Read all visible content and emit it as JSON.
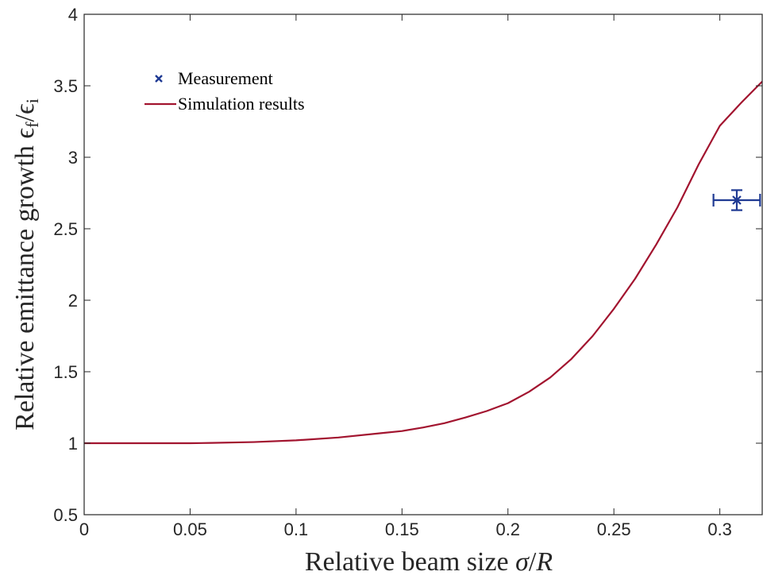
{
  "chart_data": {
    "type": "line",
    "xlabel": "Relative beam size σ/R",
    "xlabel_parts": {
      "text": "Relative beam size ",
      "sym1": "σ",
      "slash": "/",
      "sym2": "R"
    },
    "ylabel": "Relative emittance growth ϵf/ϵi",
    "ylabel_parts": {
      "text": "Relative emittance growth ",
      "eps1": "ϵ",
      "sub1": "f",
      "slash": "/",
      "eps2": "ϵ",
      "sub2": "i"
    },
    "xlim": [
      0,
      0.32
    ],
    "ylim": [
      0.5,
      4
    ],
    "xticks": [
      0,
      0.05,
      0.1,
      0.15,
      0.2,
      0.25,
      0.3
    ],
    "xtick_labels": [
      "0",
      "0.05",
      "0.1",
      "0.15",
      "0.2",
      "0.25",
      "0.3"
    ],
    "yticks": [
      0.5,
      1,
      1.5,
      2,
      2.5,
      3,
      3.5,
      4
    ],
    "ytick_labels": [
      "0.5",
      "1",
      "1.5",
      "2",
      "2.5",
      "3",
      "3.5",
      "4"
    ],
    "grid": false,
    "legend_position": "top-left",
    "series": [
      {
        "name": "Measurement",
        "kind": "errorbar",
        "color": "#1f3a93",
        "marker": "x",
        "x": [
          0.308
        ],
        "y": [
          2.7
        ],
        "xerr": [
          0.011
        ],
        "yerr": [
          0.07
        ]
      },
      {
        "name": "Simulation results",
        "kind": "line",
        "color": "#a2142f",
        "x": [
          0,
          0.02,
          0.04,
          0.05,
          0.06,
          0.08,
          0.1,
          0.12,
          0.14,
          0.15,
          0.16,
          0.17,
          0.18,
          0.19,
          0.2,
          0.21,
          0.22,
          0.23,
          0.24,
          0.25,
          0.26,
          0.27,
          0.28,
          0.29,
          0.3,
          0.31,
          0.32
        ],
        "y": [
          1.0,
          1.0,
          1.0,
          1.0,
          1.002,
          1.008,
          1.02,
          1.04,
          1.07,
          1.085,
          1.11,
          1.14,
          1.18,
          1.225,
          1.28,
          1.36,
          1.46,
          1.59,
          1.75,
          1.94,
          2.15,
          2.39,
          2.65,
          2.95,
          3.22,
          3.38,
          3.53
        ]
      }
    ]
  }
}
